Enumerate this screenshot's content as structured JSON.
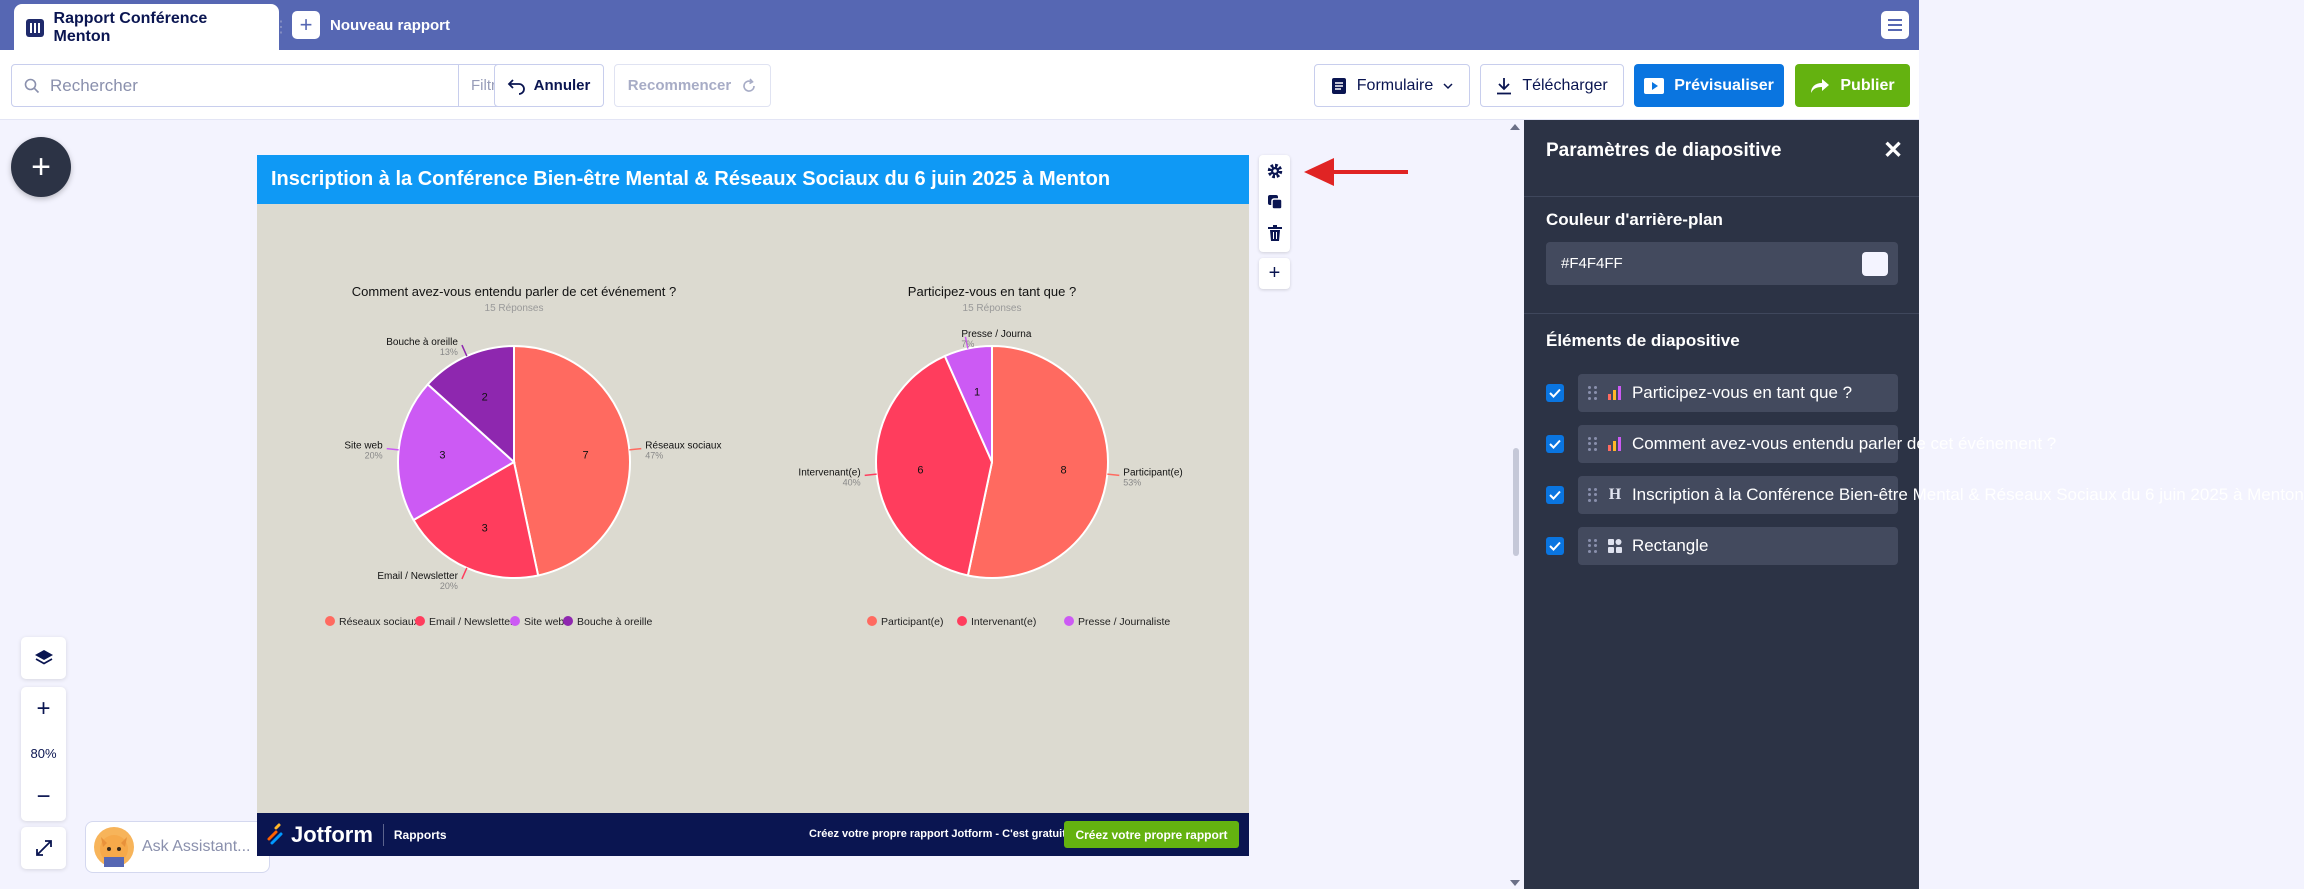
{
  "tabs": {
    "active_title": "Rapport Conférence Menton",
    "new_label": "Nouveau rapport"
  },
  "toolbar": {
    "search_placeholder": "Rechercher",
    "filter_label": "Filtre",
    "undo_label": "Annuler",
    "redo_label": "Recommencer",
    "form_label": "Formulaire",
    "download_label": "Télécharger",
    "preview_label": "Prévisualiser",
    "publish_label": "Publier"
  },
  "canvas": {
    "zoom": "80%",
    "assistant_placeholder": "Ask Assistant..."
  },
  "slide": {
    "title": "Inscription à la Conférence Bien-être Mental & Réseaux Sociaux du 6 juin 2025 à Menton",
    "footer_brand": "Jotform",
    "footer_section": "Rapports",
    "footer_cta_text": "Créez votre propre rapport Jotform - C'est gratuit",
    "footer_cta_button": "Créez votre propre rapport",
    "background": "#DCDAD0"
  },
  "panel": {
    "title": "Paramètres de diapositive",
    "bg_color_label": "Couleur d'arrière-plan",
    "bg_color_value": "#F4F4FF",
    "elements_label": "Éléments de diapositive",
    "elements": [
      {
        "label": "Participez-vous en tant que ?",
        "icon": "chart-icon",
        "checked": true
      },
      {
        "label": "Comment avez-vous entendu parler de cet événement ?",
        "icon": "chart-icon",
        "checked": true
      },
      {
        "label": "Inscription à la Conférence Bien-être Mental & Réseaux Sociaux du 6 juin 2025 à Menton",
        "icon": "heading-icon",
        "checked": true
      },
      {
        "label": "Rectangle",
        "icon": "shape-icon",
        "checked": true
      }
    ]
  },
  "colors": {
    "topbar": "#5667B3",
    "header": "#0F99F5",
    "footer": "#0A1551",
    "publish": "#64B210",
    "preview": "#0A75E0"
  },
  "chart_data": [
    {
      "type": "pie",
      "title": "Comment avez-vous entendu parler de cet événement ?",
      "subtitle": "15 Réponses",
      "categories": [
        "Réseaux sociaux",
        "Email / Newsletter",
        "Site web",
        "Bouche à oreille"
      ],
      "values": [
        7,
        3,
        3,
        2
      ],
      "percent_labels": [
        "47%",
        "20%",
        "20%",
        "13%"
      ],
      "colors": [
        "#FF6A60",
        "#FF3D5D",
        "#CC5AF4",
        "#8E27AF"
      ],
      "legend": "bottom"
    },
    {
      "type": "pie",
      "title": "Participez-vous en tant que ?",
      "subtitle": "15 Réponses",
      "categories": [
        "Participant(e)",
        "Intervenant(e)",
        "Presse / Journaliste"
      ],
      "slice_labels": [
        "Participant(e)",
        "Intervenant(e)",
        "Presse / Journa"
      ],
      "values": [
        8,
        6,
        1
      ],
      "percent_labels": [
        "53%",
        "40%",
        "7%"
      ],
      "colors": [
        "#FF6A60",
        "#FF3D5D",
        "#CC5AF4"
      ],
      "legend": "bottom"
    }
  ]
}
